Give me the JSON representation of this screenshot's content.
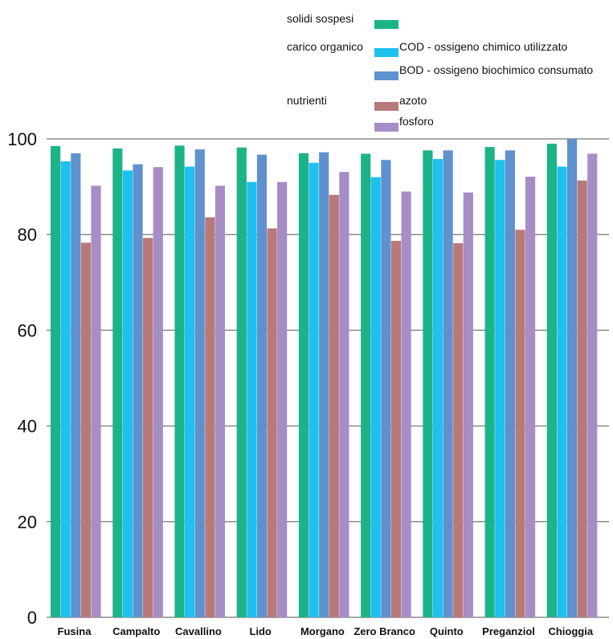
{
  "chart_data": {
    "type": "bar",
    "title": "",
    "xlabel": "",
    "ylabel": "",
    "ylim": [
      0,
      100
    ],
    "yticks": [
      0,
      20,
      40,
      60,
      80,
      100
    ],
    "grid": true,
    "legend_position": "top-right",
    "categories": [
      "Fusina",
      "Campalto",
      "Cavallino",
      "Lido",
      "Morgano",
      "Zero Branco",
      "Quinto",
      "Preganziol",
      "Chioggia"
    ],
    "legend_groups": [
      {
        "group": "solidi sospesi",
        "items": [
          0
        ]
      },
      {
        "group": "carico organico",
        "items": [
          1,
          2
        ]
      },
      {
        "group": "nutrienti",
        "items": [
          3,
          4
        ]
      }
    ],
    "series": [
      {
        "name": "",
        "color": "#1db389",
        "values": [
          98.5,
          98.0,
          98.6,
          98.2,
          97.0,
          96.9,
          97.6,
          98.3,
          99.0
        ]
      },
      {
        "name": "COD - ossigeno chimico utilizzato",
        "color": "#1ec1ee",
        "values": [
          95.3,
          93.4,
          94.2,
          91.0,
          95.0,
          92.0,
          95.8,
          95.6,
          94.2
        ]
      },
      {
        "name": "BOD - ossigeno biochimico consumato",
        "color": "#5f91cf",
        "values": [
          97.0,
          94.7,
          97.8,
          96.7,
          97.2,
          95.6,
          97.6,
          97.6,
          100.0
        ]
      },
      {
        "name": "azoto",
        "color": "#b87a79",
        "values": [
          78.3,
          79.3,
          83.6,
          81.3,
          88.3,
          78.7,
          78.2,
          81.0,
          91.3
        ]
      },
      {
        "name": "fosforo",
        "color": "#a78dc6",
        "values": [
          90.2,
          94.1,
          90.2,
          91.0,
          93.1,
          89.0,
          88.8,
          92.1,
          96.9
        ]
      }
    ]
  }
}
